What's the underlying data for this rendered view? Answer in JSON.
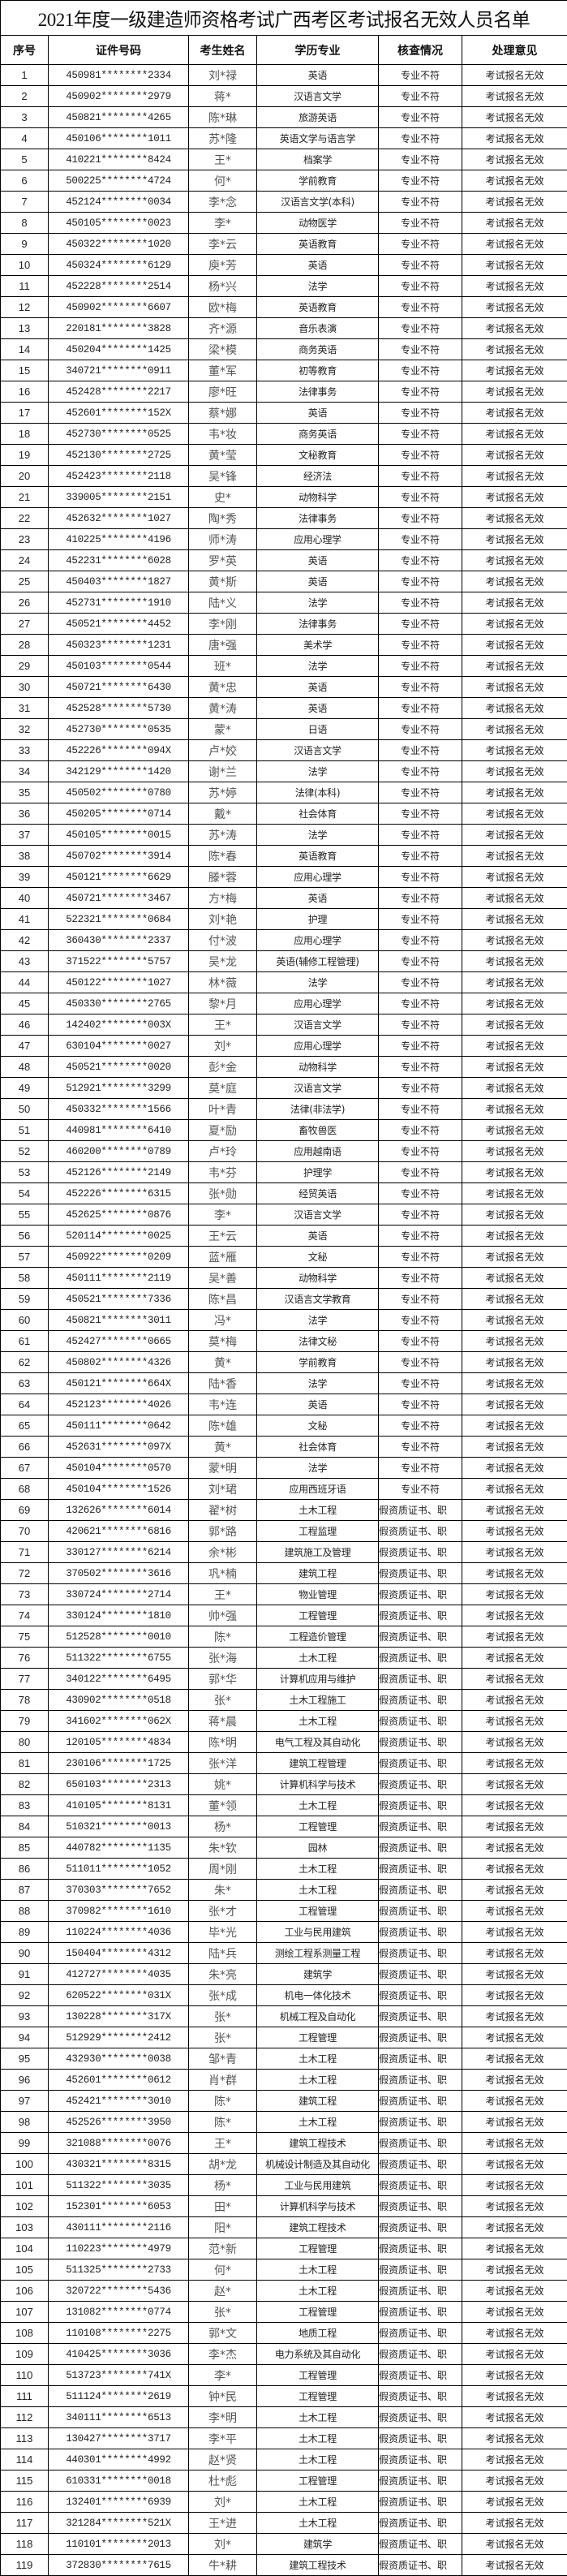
{
  "title": "2021年度一级建造师资格考试广西考区考试报名无效人员名单",
  "columns": [
    "序号",
    "证件号码",
    "考生姓名",
    "学历专业",
    "核查情况",
    "处理意见"
  ],
  "rows": [
    [
      "1",
      "450981********2334",
      "刘*禄",
      "英语",
      "专业不符",
      "考试报名无效"
    ],
    [
      "2",
      "450902********2979",
      "蒋*",
      "汉语言文学",
      "专业不符",
      "考试报名无效"
    ],
    [
      "3",
      "450821********4265",
      "陈*琳",
      "旅游英语",
      "专业不符",
      "考试报名无效"
    ],
    [
      "4",
      "450106********1011",
      "苏*隆",
      "英语文学与语言学",
      "专业不符",
      "考试报名无效"
    ],
    [
      "5",
      "410221********8424",
      "王*",
      "档案学",
      "专业不符",
      "考试报名无效"
    ],
    [
      "6",
      "500225********4724",
      "何*",
      "学前教育",
      "专业不符",
      "考试报名无效"
    ],
    [
      "7",
      "452124********0034",
      "李*念",
      "汉语言文学(本科)",
      "专业不符",
      "考试报名无效"
    ],
    [
      "8",
      "450105********0023",
      "李*",
      "动物医学",
      "专业不符",
      "考试报名无效"
    ],
    [
      "9",
      "450322********1020",
      "李*云",
      "英语教育",
      "专业不符",
      "考试报名无效"
    ],
    [
      "10",
      "450324********6129",
      "庾*芳",
      "英语",
      "专业不符",
      "考试报名无效"
    ],
    [
      "11",
      "452228********2514",
      "杨*兴",
      "法学",
      "专业不符",
      "考试报名无效"
    ],
    [
      "12",
      "450902********6607",
      "欧*梅",
      "英语教育",
      "专业不符",
      "考试报名无效"
    ],
    [
      "13",
      "220181********3828",
      "齐*源",
      "音乐表演",
      "专业不符",
      "考试报名无效"
    ],
    [
      "14",
      "450204********1425",
      "梁*模",
      "商务英语",
      "专业不符",
      "考试报名无效"
    ],
    [
      "15",
      "340721********0911",
      "董*军",
      "初等教育",
      "专业不符",
      "考试报名无效"
    ],
    [
      "16",
      "452428********2217",
      "廖*旺",
      "法律事务",
      "专业不符",
      "考试报名无效"
    ],
    [
      "17",
      "452601********152X",
      "蔡*娜",
      "英语",
      "专业不符",
      "考试报名无效"
    ],
    [
      "18",
      "452730********0525",
      "韦*妆",
      "商务英语",
      "专业不符",
      "考试报名无效"
    ],
    [
      "19",
      "452130********2725",
      "黄*莹",
      "文秘教育",
      "专业不符",
      "考试报名无效"
    ],
    [
      "20",
      "452423********2118",
      "吴*锋",
      "经济法",
      "专业不符",
      "考试报名无效"
    ],
    [
      "21",
      "339005********2151",
      "史*",
      "动物科学",
      "专业不符",
      "考试报名无效"
    ],
    [
      "22",
      "452632********1027",
      "陶*秀",
      "法律事务",
      "专业不符",
      "考试报名无效"
    ],
    [
      "23",
      "410225********4196",
      "师*涛",
      "应用心理学",
      "专业不符",
      "考试报名无效"
    ],
    [
      "24",
      "452231********6028",
      "罗*英",
      "英语",
      "专业不符",
      "考试报名无效"
    ],
    [
      "25",
      "450403********1827",
      "黄*斯",
      "英语",
      "专业不符",
      "考试报名无效"
    ],
    [
      "26",
      "452731********1910",
      "陆*义",
      "法学",
      "专业不符",
      "考试报名无效"
    ],
    [
      "27",
      "450521********4452",
      "李*刚",
      "法律事务",
      "专业不符",
      "考试报名无效"
    ],
    [
      "28",
      "450323********1231",
      "唐*强",
      "美术学",
      "专业不符",
      "考试报名无效"
    ],
    [
      "29",
      "450103********0544",
      "班*",
      "法学",
      "专业不符",
      "考试报名无效"
    ],
    [
      "30",
      "450721********6430",
      "黄*忠",
      "英语",
      "专业不符",
      "考试报名无效"
    ],
    [
      "31",
      "452528********5730",
      "黄*涛",
      "英语",
      "专业不符",
      "考试报名无效"
    ],
    [
      "32",
      "452730********0535",
      "蒙*",
      "日语",
      "专业不符",
      "考试报名无效"
    ],
    [
      "33",
      "452226********094X",
      "卢*姣",
      "汉语言文学",
      "专业不符",
      "考试报名无效"
    ],
    [
      "34",
      "342129********1420",
      "谢*兰",
      "法学",
      "专业不符",
      "考试报名无效"
    ],
    [
      "35",
      "450502********0780",
      "苏*婷",
      "法律(本科)",
      "专业不符",
      "考试报名无效"
    ],
    [
      "36",
      "450205********0714",
      "戴*",
      "社会体育",
      "专业不符",
      "考试报名无效"
    ],
    [
      "37",
      "450105********0015",
      "苏*涛",
      "法学",
      "专业不符",
      "考试报名无效"
    ],
    [
      "38",
      "450702********3914",
      "陈*春",
      "英语教育",
      "专业不符",
      "考试报名无效"
    ],
    [
      "39",
      "450121********6629",
      "滕*蓉",
      "应用心理学",
      "专业不符",
      "考试报名无效"
    ],
    [
      "40",
      "450721********3467",
      "方*梅",
      "英语",
      "专业不符",
      "考试报名无效"
    ],
    [
      "41",
      "522321********0684",
      "刘*艳",
      "护理",
      "专业不符",
      "考试报名无效"
    ],
    [
      "42",
      "360430********2337",
      "付*波",
      "应用心理学",
      "专业不符",
      "考试报名无效"
    ],
    [
      "43",
      "371522********5757",
      "吴*龙",
      "英语(辅修工程管理)",
      "专业不符",
      "考试报名无效"
    ],
    [
      "44",
      "450122********1027",
      "林*薇",
      "法学",
      "专业不符",
      "考试报名无效"
    ],
    [
      "45",
      "450330********2765",
      "黎*月",
      "应用心理学",
      "专业不符",
      "考试报名无效"
    ],
    [
      "46",
      "142402********003X",
      "王*",
      "汉语言文学",
      "专业不符",
      "考试报名无效"
    ],
    [
      "47",
      "630104********0027",
      "刘*",
      "应用心理学",
      "专业不符",
      "考试报名无效"
    ],
    [
      "48",
      "450521********0020",
      "彭*金",
      "动物科学",
      "专业不符",
      "考试报名无效"
    ],
    [
      "49",
      "512921********3299",
      "莫*庭",
      "汉语言文学",
      "专业不符",
      "考试报名无效"
    ],
    [
      "50",
      "450332********1566",
      "叶*青",
      "法律(非法学)",
      "专业不符",
      "考试报名无效"
    ],
    [
      "51",
      "440981********6410",
      "夏*励",
      "畜牧兽医",
      "专业不符",
      "考试报名无效"
    ],
    [
      "52",
      "460200********0789",
      "卢*玲",
      "应用越南语",
      "专业不符",
      "考试报名无效"
    ],
    [
      "53",
      "452126********2149",
      "韦*芬",
      "护理学",
      "专业不符",
      "考试报名无效"
    ],
    [
      "54",
      "452226********6315",
      "张*勋",
      "经贸英语",
      "专业不符",
      "考试报名无效"
    ],
    [
      "55",
      "452625********0876",
      "李*",
      "汉语言文学",
      "专业不符",
      "考试报名无效"
    ],
    [
      "56",
      "520114********0025",
      "王*云",
      "英语",
      "专业不符",
      "考试报名无效"
    ],
    [
      "57",
      "450922********0209",
      "蓝*雁",
      "文秘",
      "专业不符",
      "考试报名无效"
    ],
    [
      "58",
      "450111********2119",
      "吴*善",
      "动物科学",
      "专业不符",
      "考试报名无效"
    ],
    [
      "59",
      "450521********7336",
      "陈*昌",
      "汉语言文学教育",
      "专业不符",
      "考试报名无效"
    ],
    [
      "60",
      "450821********3011",
      "冯*",
      "法学",
      "专业不符",
      "考试报名无效"
    ],
    [
      "61",
      "452427********0665",
      "莫*梅",
      "法律文秘",
      "专业不符",
      "考试报名无效"
    ],
    [
      "62",
      "450802********4326",
      "黄*",
      "学前教育",
      "专业不符",
      "考试报名无效"
    ],
    [
      "63",
      "450121********664X",
      "陆*香",
      "法学",
      "专业不符",
      "考试报名无效"
    ],
    [
      "64",
      "452123********4026",
      "韦*连",
      "英语",
      "专业不符",
      "考试报名无效"
    ],
    [
      "65",
      "450111********0642",
      "陈*雄",
      "文秘",
      "专业不符",
      "考试报名无效"
    ],
    [
      "66",
      "452631********097X",
      "黄*",
      "社会体育",
      "专业不符",
      "考试报名无效"
    ],
    [
      "67",
      "450104********0570",
      "蒙*明",
      "法学",
      "专业不符",
      "考试报名无效"
    ],
    [
      "68",
      "450104********1526",
      "刘*珺",
      "应用西班牙语",
      "专业不符",
      "考试报名无效"
    ],
    [
      "69",
      "132626********6014",
      "翟*树",
      "土木工程",
      "假资质证书、职",
      "考试报名无效"
    ],
    [
      "70",
      "420621********6816",
      "郭*路",
      "工程监理",
      "假资质证书、职",
      "考试报名无效"
    ],
    [
      "71",
      "330127********6214",
      "余*彬",
      "建筑施工及管理",
      "假资质证书、职",
      "考试报名无效"
    ],
    [
      "72",
      "370502********3616",
      "巩*楠",
      "建筑工程",
      "假资质证书、职",
      "考试报名无效"
    ],
    [
      "73",
      "330724********2714",
      "王*",
      "物业管理",
      "假资质证书、职",
      "考试报名无效"
    ],
    [
      "74",
      "330124********1810",
      "帅*强",
      "工程管理",
      "假资质证书、职",
      "考试报名无效"
    ],
    [
      "75",
      "512528********0010",
      "陈*",
      "工程造价管理",
      "假资质证书、职",
      "考试报名无效"
    ],
    [
      "76",
      "511322********6755",
      "张*海",
      "土木工程",
      "假资质证书、职",
      "考试报名无效"
    ],
    [
      "77",
      "340122********6495",
      "郭*华",
      "计算机应用与维护",
      "假资质证书、职",
      "考试报名无效"
    ],
    [
      "78",
      "430902********0518",
      "张*",
      "土木工程施工",
      "假资质证书、职",
      "考试报名无效"
    ],
    [
      "79",
      "341602********062X",
      "蒋*晨",
      "土木工程",
      "假资质证书、职",
      "考试报名无效"
    ],
    [
      "80",
      "120105********4834",
      "陈*明",
      "电气工程及其自动化",
      "假资质证书、职",
      "考试报名无效"
    ],
    [
      "81",
      "230106********1725",
      "张*洋",
      "建筑工程管理",
      "假资质证书、职",
      "考试报名无效"
    ],
    [
      "82",
      "650103********2313",
      "姚*",
      "计算机科学与技术",
      "假资质证书、职",
      "考试报名无效"
    ],
    [
      "83",
      "410105********8131",
      "董*领",
      "土木工程",
      "假资质证书、职",
      "考试报名无效"
    ],
    [
      "84",
      "510321********0013",
      "杨*",
      "工程管理",
      "假资质证书、职",
      "考试报名无效"
    ],
    [
      "85",
      "440782********1135",
      "朱*钦",
      "园林",
      "假资质证书、职",
      "考试报名无效"
    ],
    [
      "86",
      "511011********1052",
      "周*刚",
      "土木工程",
      "假资质证书、职",
      "考试报名无效"
    ],
    [
      "87",
      "370303********7652",
      "朱*",
      "土木工程",
      "假资质证书、职",
      "考试报名无效"
    ],
    [
      "88",
      "370982********1610",
      "张*才",
      "工程管理",
      "假资质证书、职",
      "考试报名无效"
    ],
    [
      "89",
      "110224********4036",
      "毕*光",
      "工业与民用建筑",
      "假资质证书、职",
      "考试报名无效"
    ],
    [
      "90",
      "150404********4312",
      "陆*兵",
      "测绘工程系测量工程",
      "假资质证书、职",
      "考试报名无效"
    ],
    [
      "91",
      "412727********4035",
      "朱*亮",
      "建筑学",
      "假资质证书、职",
      "考试报名无效"
    ],
    [
      "92",
      "620522********031X",
      "张*成",
      "机电一体化技术",
      "假资质证书、职",
      "考试报名无效"
    ],
    [
      "93",
      "130228********317X",
      "张*",
      "机械工程及自动化",
      "假资质证书、职",
      "考试报名无效"
    ],
    [
      "94",
      "512929********2412",
      "张*",
      "工程管理",
      "假资质证书、职",
      "考试报名无效"
    ],
    [
      "95",
      "432930********0038",
      "邹*青",
      "土木工程",
      "假资质证书、职",
      "考试报名无效"
    ],
    [
      "96",
      "452601********0612",
      "肖*群",
      "土木工程",
      "假资质证书、职",
      "考试报名无效"
    ],
    [
      "97",
      "452421********3010",
      "陈*",
      "建筑工程",
      "假资质证书、职",
      "考试报名无效"
    ],
    [
      "98",
      "452526********3950",
      "陈*",
      "土木工程",
      "假资质证书、职",
      "考试报名无效"
    ],
    [
      "99",
      "321088********0076",
      "王*",
      "建筑工程技术",
      "假资质证书、职",
      "考试报名无效"
    ],
    [
      "100",
      "430321********8315",
      "胡*龙",
      "机械设计制造及其自动化",
      "假资质证书、职",
      "考试报名无效"
    ],
    [
      "101",
      "511322********3035",
      "杨*",
      "工业与民用建筑",
      "假资质证书、职",
      "考试报名无效"
    ],
    [
      "102",
      "152301********6053",
      "田*",
      "计算机科学与技术",
      "假资质证书、职",
      "考试报名无效"
    ],
    [
      "103",
      "430111********2116",
      "阳*",
      "建筑工程技术",
      "假资质证书、职",
      "考试报名无效"
    ],
    [
      "104",
      "110223********4979",
      "范*新",
      "工程管理",
      "假资质证书、职",
      "考试报名无效"
    ],
    [
      "105",
      "511325********2733",
      "何*",
      "土木工程",
      "假资质证书、职",
      "考试报名无效"
    ],
    [
      "106",
      "320722********5436",
      "赵*",
      "土木工程",
      "假资质证书、职",
      "考试报名无效"
    ],
    [
      "107",
      "131082********0774",
      "张*",
      "工程管理",
      "假资质证书、职",
      "考试报名无效"
    ],
    [
      "108",
      "110108********2275",
      "郭*文",
      "地质工程",
      "假资质证书、职",
      "考试报名无效"
    ],
    [
      "109",
      "410425********3036",
      "李*杰",
      "电力系统及其自动化",
      "假资质证书、职",
      "考试报名无效"
    ],
    [
      "110",
      "513723********741X",
      "李*",
      "工程管理",
      "假资质证书、职",
      "考试报名无效"
    ],
    [
      "111",
      "511124********2619",
      "钟*民",
      "工程管理",
      "假资质证书、职",
      "考试报名无效"
    ],
    [
      "112",
      "340111********6513",
      "李*明",
      "土木工程",
      "假资质证书、职",
      "考试报名无效"
    ],
    [
      "113",
      "130427********3717",
      "李*平",
      "土木工程",
      "假资质证书、职",
      "考试报名无效"
    ],
    [
      "114",
      "440301********4992",
      "赵*贤",
      "土木工程",
      "假资质证书、职",
      "考试报名无效"
    ],
    [
      "115",
      "610331********0018",
      "杜*彪",
      "工程管理",
      "假资质证书、职",
      "考试报名无效"
    ],
    [
      "116",
      "132401********6939",
      "刘*",
      "土木工程",
      "假资质证书、职",
      "考试报名无效"
    ],
    [
      "117",
      "321284********521X",
      "王*进",
      "土木工程",
      "假资质证书、职",
      "考试报名无效"
    ],
    [
      "118",
      "110101********2013",
      "刘*",
      "建筑学",
      "假资质证书、职",
      "考试报名无效"
    ],
    [
      "119",
      "372830********7615",
      "牛*耕",
      "建筑工程技术",
      "假资质证书、职",
      "考试报名无效"
    ]
  ]
}
